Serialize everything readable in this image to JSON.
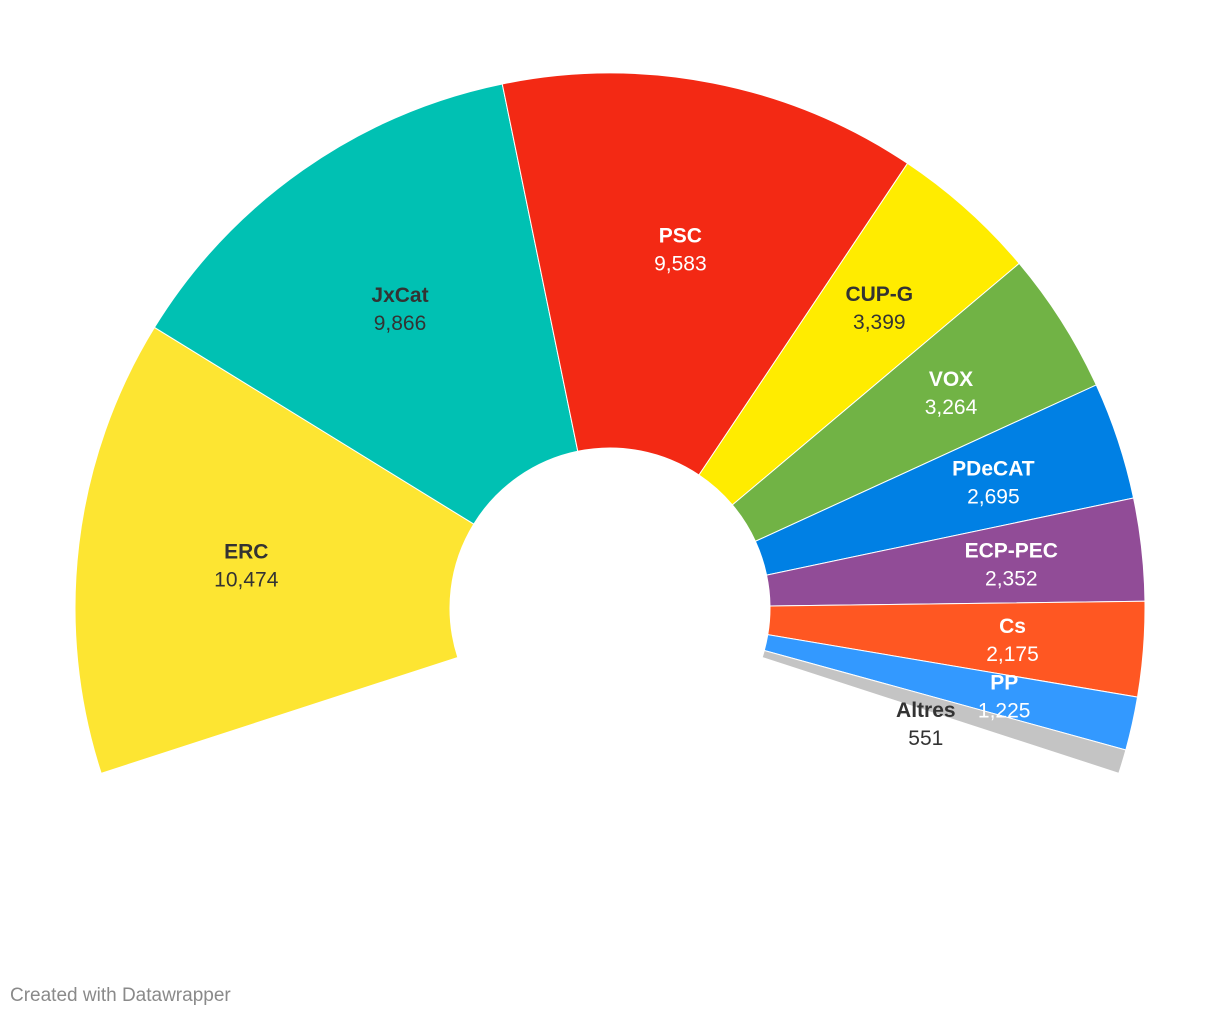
{
  "chart_data": {
    "type": "pie",
    "variant": "semicircle-donut",
    "categories": [
      "ERC",
      "JxCat",
      "PSC",
      "CUP-G",
      "VOX",
      "PDeCAT",
      "ECP-PEC",
      "Cs",
      "PP",
      "Altres"
    ],
    "values": [
      10474,
      9866,
      9583,
      3399,
      3264,
      2695,
      2352,
      2175,
      1225,
      551
    ],
    "value_labels": [
      "10,474",
      "9,866",
      "9,583",
      "3,399",
      "3,264",
      "2,695",
      "2,352",
      "2,175",
      "1,225",
      "551"
    ],
    "colors": [
      "#fde532",
      "#00c1b3",
      "#f32914",
      "#ffec00",
      "#71b345",
      "#0080e4",
      "#914c97",
      "#ff5722",
      "#3399ff",
      "#c4c4c4"
    ],
    "label_styles": [
      "dark",
      "dark",
      "light",
      "dark",
      "light",
      "light",
      "light",
      "light",
      "light",
      "outside"
    ],
    "title": ""
  },
  "footer": {
    "credit": "Created with Datawrapper"
  }
}
